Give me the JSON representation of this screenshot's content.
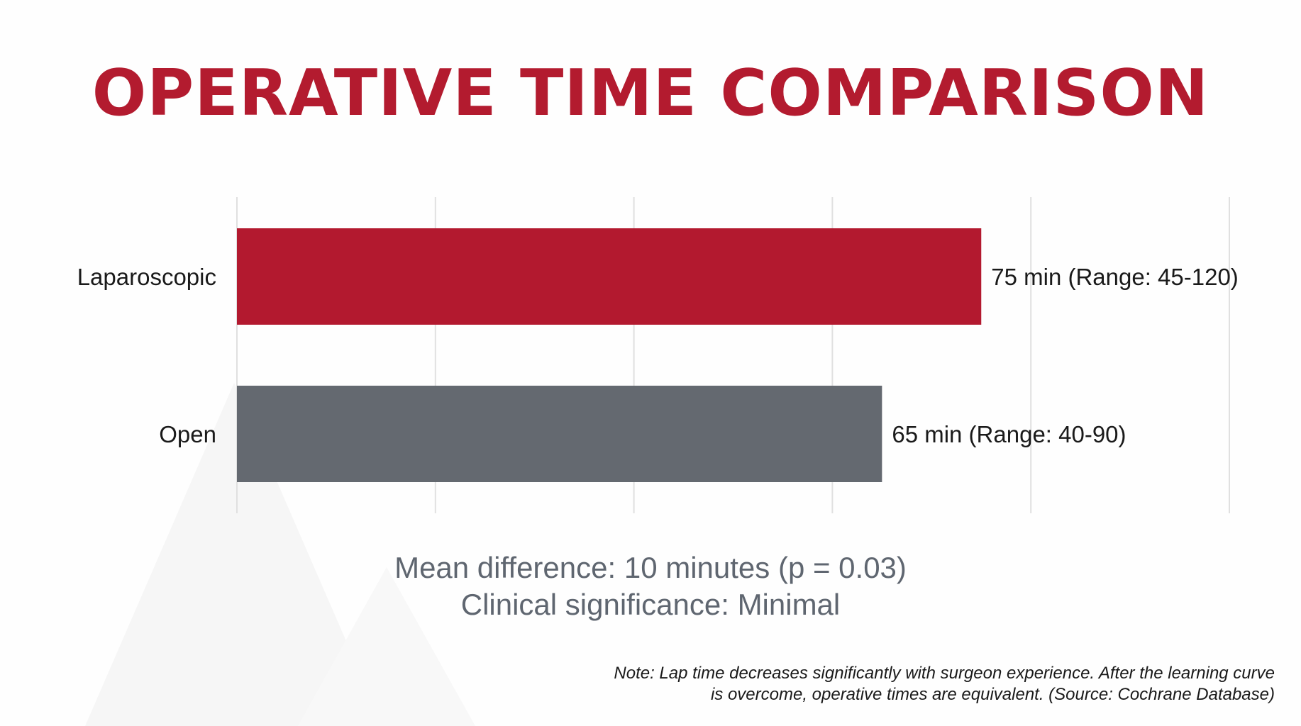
{
  "colors": {
    "title": "#b31b2f",
    "laparoscopic": "#b3192f",
    "open": "#646970",
    "grid": "#e0e0e0",
    "summary_text": "#5f6670"
  },
  "chart_data": {
    "type": "bar",
    "orientation": "horizontal",
    "title": "OPERATIVE TIME COMPARISON",
    "categories": [
      "Laparoscopic",
      "Open"
    ],
    "values": [
      75,
      65
    ],
    "unit": "min",
    "ranges": [
      [
        45,
        120
      ],
      [
        40,
        90
      ]
    ],
    "data_labels": [
      "75 min (Range: 45-120)",
      "65 min (Range: 40-90)"
    ],
    "bar_colors": [
      "#b3192f",
      "#646970"
    ],
    "xlim": [
      0,
      100
    ],
    "grid": true,
    "xlabel": "",
    "ylabel": ""
  },
  "summary": {
    "line1": "Mean difference: 10 minutes (p = 0.03)",
    "line2": "Clinical significance: Minimal"
  },
  "note": {
    "line1": "Note: Lap time decreases significantly with surgeon experience. After the learning curve",
    "line2": "is overcome, operative times are equivalent. (Source: Cochrane Database)"
  }
}
